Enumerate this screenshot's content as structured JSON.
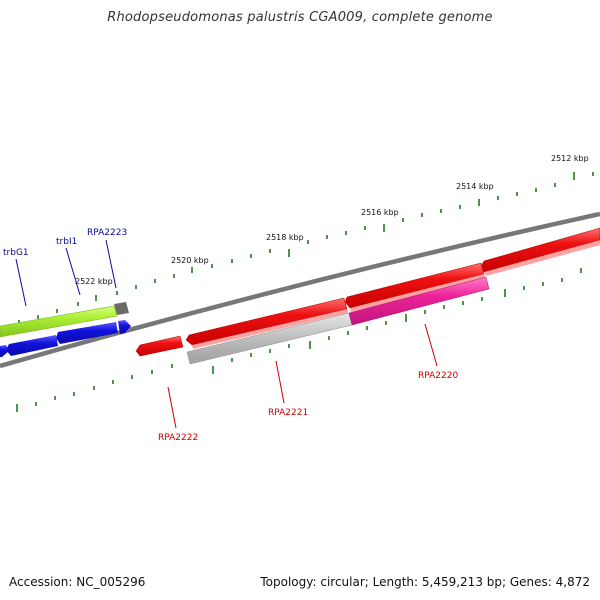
{
  "title": "Rhodopseudomonas palustris CGA009, complete genome",
  "footer": {
    "accession": "Accession: NC_005296",
    "summary": "Topology: circular; Length: 5,459,213 bp; Genes: 4,872"
  },
  "scale_labels": [
    "2512 kbp",
    "2514 kbp",
    "2516 kbp",
    "2518 kbp",
    "2520 kbp",
    "2522 kbp"
  ],
  "gene_labels": {
    "trbG1": "trbG1",
    "trbI1": "trbI1",
    "RPA2223": "RPA2223",
    "RPA2222": "RPA2222",
    "RPA2221": "RPA2221",
    "RPA2220": "RPA2220"
  },
  "colors": {
    "backbone": "#7a7a7a",
    "tick": "#1f7a1f",
    "forward_red": "#ee1111",
    "reverse_red": "#ee1111",
    "pink": "#ee2299",
    "gray_gene": "#bdbdbd",
    "lime": "#aaee33",
    "blue": "#1111dd",
    "label_blue": "#0a0aa0",
    "label_red": "#cc0000"
  }
}
